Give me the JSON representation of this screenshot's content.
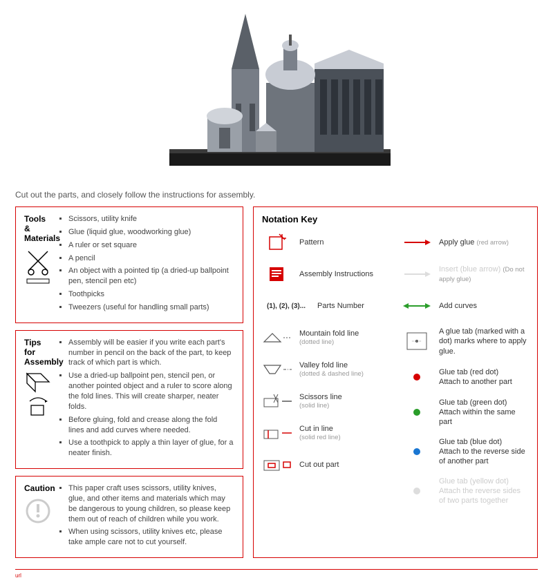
{
  "intro": "Cut out the parts, and closely follow the instructions for assembly.",
  "tools": {
    "title": "Tools & Materials",
    "items": [
      "Scissors, utility knife",
      "Glue (liquid glue, woodworking glue)",
      "A ruler or set square",
      "A pencil",
      "An object with a pointed tip (a dried-up ballpoint pen, stencil pen etc)",
      "Toothpicks",
      "Tweezers (useful for handling small parts)"
    ]
  },
  "tips": {
    "title": "Tips for Assembly",
    "items": [
      "Assembly will be easier if you write each part's number in pencil on the back of the part, to keep track of which part is which.",
      "Use a dried-up ballpoint pen, stencil pen, or another pointed object and a ruler to score along the fold lines. This will create sharper, neater folds.",
      "Before gluing, fold and crease along the fold lines and add curves where needed.",
      "Use a toothpick to apply a thin layer of glue, for a neater finish."
    ]
  },
  "caution": {
    "title": "Caution",
    "items": [
      "This paper craft uses scissors, utility knives, glue, and other items and materials which may be dangerous to young children, so please keep them out of reach of children while you work.",
      "When using scissors, utility knives etc, please take ample care not to cut yourself."
    ]
  },
  "notation": {
    "title": "Notation Key",
    "left": [
      {
        "label": "Pattern",
        "sub": ""
      },
      {
        "label": "Assembly Instructions",
        "sub": ""
      },
      {
        "label": "Parts Number",
        "sub": "",
        "prefix": "(1), (2), (3)..."
      },
      {
        "label": "Mountain fold line",
        "sub": "(dotted line)"
      },
      {
        "label": "Valley fold line",
        "sub": "(dotted & dashed line)"
      },
      {
        "label": "Scissors line",
        "sub": "(solid line)"
      },
      {
        "label": "Cut in line",
        "sub": "(solid red line)"
      },
      {
        "label": "Cut out part",
        "sub": ""
      }
    ],
    "right": [
      {
        "label": "Apply glue",
        "sub": "(red arrow)",
        "color": "#d60000"
      },
      {
        "label": "Insert (blue arrow)",
        "sub": "(Do not apply glue)",
        "color": "#ddd",
        "faded": true
      },
      {
        "label": "Add curves",
        "sub": "",
        "color": "#2a9d2a"
      },
      {
        "label": "A glue tab (marked with a dot) marks where to apply glue.",
        "sub": "",
        "boxicon": true
      },
      {
        "label": "Glue tab (red dot)",
        "sub2": "Attach to another part",
        "dot": "#d60000"
      },
      {
        "label": "Glue tab (green dot)",
        "sub2": "Attach within the same part",
        "dot": "#2a9d2a"
      },
      {
        "label": "Glue tab (blue dot)",
        "sub2": "Attach to the reverse side of another part",
        "dot": "#1976d2"
      },
      {
        "label": "Glue tab (yellow dot)",
        "sub2": "Attach the reverse sides of two parts together",
        "dot": "#ddd",
        "faded": true
      }
    ]
  },
  "colors": {
    "border": "#d60000",
    "building_wall": "#8a8f96",
    "building_roof": "#d8dce2",
    "building_base": "#2a2a2a"
  },
  "footer": "url"
}
